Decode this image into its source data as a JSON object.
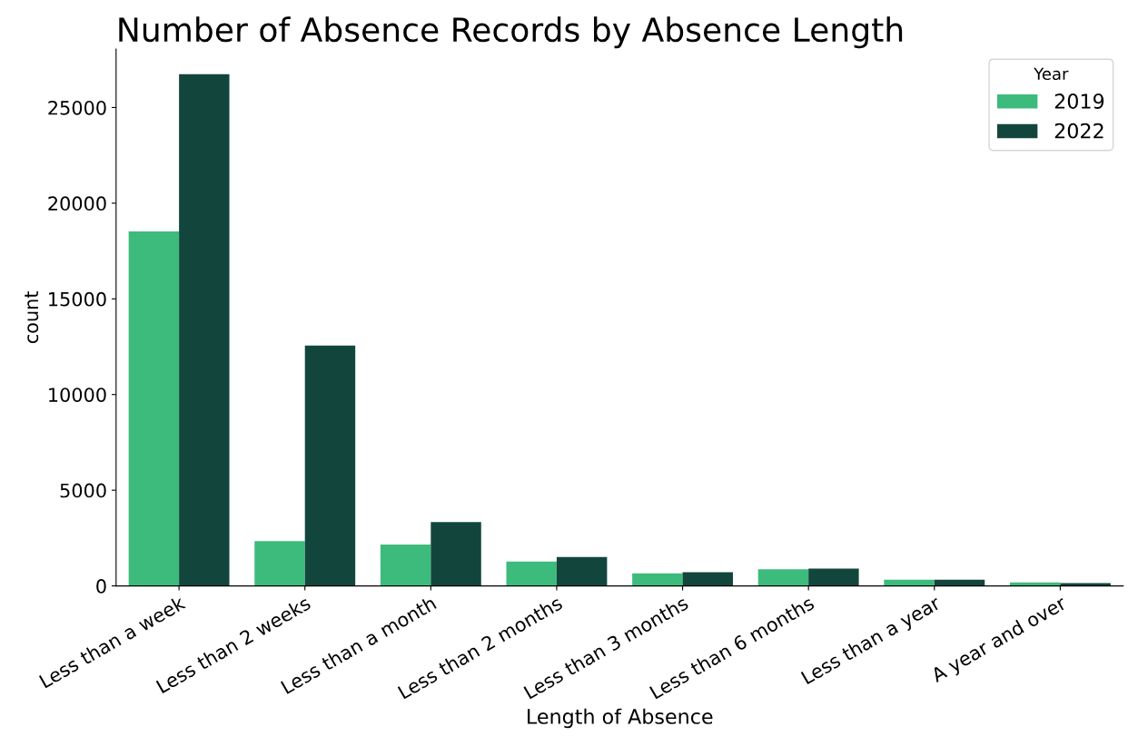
{
  "chart_data": {
    "type": "bar",
    "title": "Number of Absence Records by Absence Length",
    "xlabel": "Length of Absence",
    "ylabel": "count",
    "categories": [
      "Less than a week",
      "Less than 2 weeks",
      "Less than a month",
      "Less than 2 months",
      "Less than 3 months",
      "Less than 6 months",
      "Less than a year",
      "A year and over"
    ],
    "series": [
      {
        "name": "2019",
        "color": "#3dbb7c",
        "values": [
          18520,
          2340,
          2160,
          1270,
          650,
          870,
          320,
          185
        ]
      },
      {
        "name": "2022",
        "color": "#12463d",
        "values": [
          26740,
          12560,
          3330,
          1510,
          715,
          910,
          320,
          150
        ]
      }
    ],
    "legend_title": "Year",
    "legend": "top right",
    "grid": false,
    "ylim": [
      0,
      28050
    ],
    "yticks": [
      0,
      5000,
      10000,
      15000,
      20000,
      25000
    ]
  }
}
